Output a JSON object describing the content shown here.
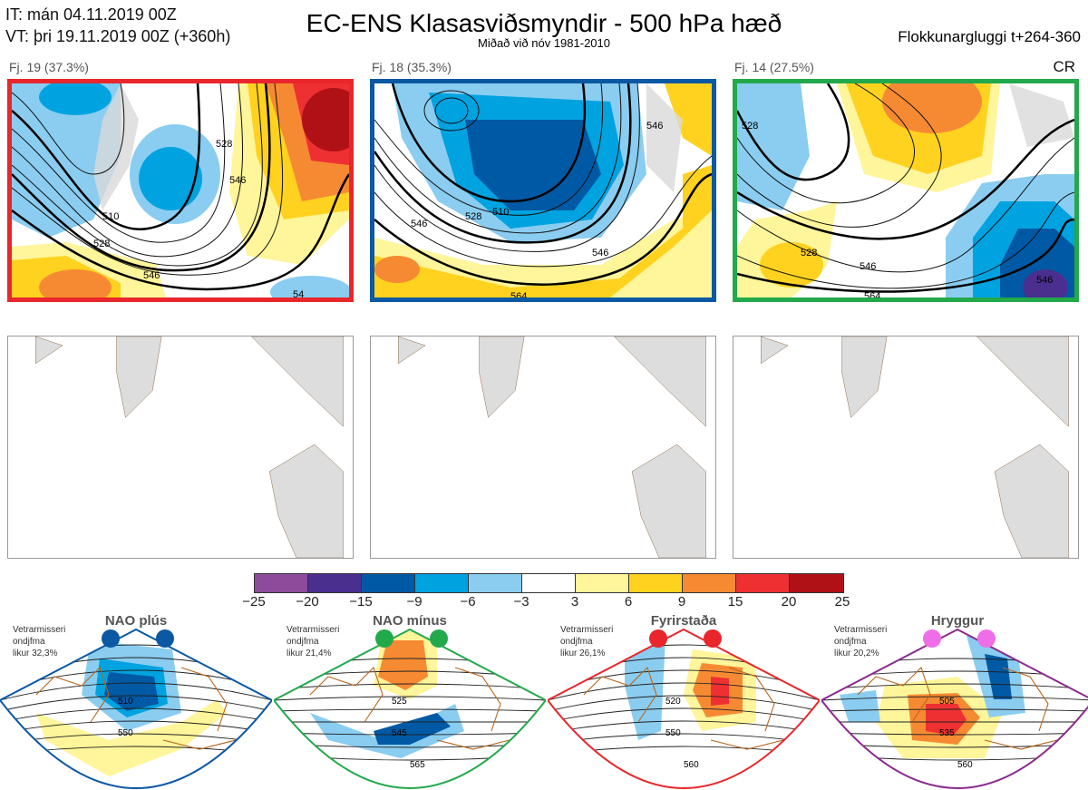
{
  "header": {
    "it": "IT: mán 04.11.2019 00Z",
    "vt": "VT: þri 19.11.2019 00Z  (+360h)",
    "title": "EC-ENS Klasasviðsmyndir - 500 hPa hæð",
    "subtitle": "Miðað við nóv 1981-2010",
    "window": "Flokkunargluggi t+264-360",
    "cr": "CR"
  },
  "clusters": [
    {
      "label": "Fj. 19 (37.3%)",
      "color": "#e8262b",
      "contours": [
        "510",
        "528",
        "546",
        "528",
        "546",
        "54"
      ]
    },
    {
      "label": "Fj. 18 (35.3%)",
      "color": "#0b58a3",
      "contours": [
        "510",
        "528",
        "546",
        "546",
        "564",
        "546"
      ]
    },
    {
      "label": "Fj. 14 (27.5%)",
      "color": "#22a94b",
      "contours": [
        "528",
        "528",
        "546",
        "564",
        "546"
      ]
    }
  ],
  "colorbar": {
    "ticks": [
      "−25",
      "−20",
      "−15",
      "−9",
      "−6",
      "−3",
      "3",
      "6",
      "9",
      "15",
      "20",
      "25"
    ],
    "colors": [
      "#8e4a9b",
      "#4a2f8f",
      "#0059a5",
      "#00a3e0",
      "#8acdf0",
      "#ffffff",
      "#fff59a",
      "#ffd21f",
      "#f68a33",
      "#ee3032",
      "#b01117"
    ]
  },
  "regimes": [
    {
      "title": "NAO plús",
      "line1": "Vetrarmisseri",
      "line2": "ondjfma",
      "line3": "likur 32,3%",
      "color": "#0b58a3",
      "contours": [
        "510",
        "550"
      ]
    },
    {
      "title": "NAO mínus",
      "line1": "Vetrarmisseri",
      "line2": "ondjfma",
      "line3": "likur 21,4%",
      "color": "#22a94b",
      "contours": [
        "525",
        "545",
        "565"
      ]
    },
    {
      "title": "Fyrirstaða",
      "line1": "Vetrarmisseri",
      "line2": "ondjfma",
      "line3": "likur 26,1%",
      "color": "#e8262b",
      "contours": [
        "520",
        "550",
        "560"
      ]
    },
    {
      "title": "Hryggur",
      "line1": "Vetrarmisseri",
      "line2": "ondjfma",
      "line3": "likur 20,2%",
      "color": "#8b2a8e",
      "contours": [
        "505",
        "535",
        "560"
      ]
    }
  ]
}
